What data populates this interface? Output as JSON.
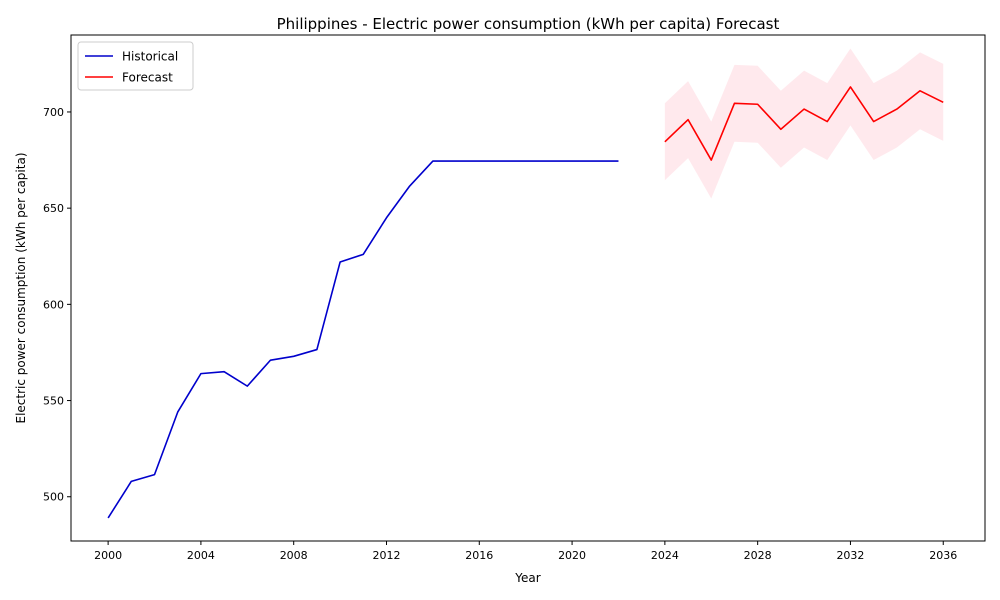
{
  "chart_data": {
    "type": "line",
    "title": "Philippines - Electric power consumption (kWh per capita) Forecast",
    "xlabel": "Year",
    "ylabel": "Electric power consumption (kWh per capita)",
    "xlim": [
      1998.4,
      2037.8
    ],
    "ylim": [
      477,
      740
    ],
    "x_ticks": [
      2000,
      2004,
      2008,
      2012,
      2016,
      2020,
      2024,
      2028,
      2032,
      2036
    ],
    "y_ticks": [
      500,
      550,
      600,
      650,
      700
    ],
    "grid": false,
    "legend_position": "top-left",
    "series": [
      {
        "name": "Historical",
        "color": "#0000cc",
        "x": [
          2000,
          2001,
          2002,
          2003,
          2004,
          2005,
          2006,
          2007,
          2008,
          2009,
          2010,
          2011,
          2012,
          2013,
          2014,
          2015,
          2016,
          2017,
          2018,
          2019,
          2020,
          2021,
          2022
        ],
        "y": [
          489,
          508,
          511.5,
          544,
          564,
          565,
          557.5,
          571,
          573,
          576.5,
          622,
          626,
          645,
          661.5,
          674.5,
          674.5,
          674.5,
          674.5,
          674.5,
          674.5,
          674.5,
          674.5,
          674.5
        ]
      },
      {
        "name": "Forecast",
        "color": "#ff0000",
        "x": [
          2024,
          2025,
          2026,
          2027,
          2028,
          2029,
          2030,
          2031,
          2032,
          2033,
          2034,
          2035,
          2036
        ],
        "y": [
          684.5,
          696,
          675,
          704.5,
          704,
          691,
          701.5,
          695,
          713,
          695,
          701.5,
          711,
          705
        ],
        "band_lower": [
          664.5,
          676,
          655,
          684.5,
          684,
          671,
          681.5,
          675,
          693,
          675,
          681.5,
          691,
          685
        ],
        "band_upper": [
          704.5,
          716,
          695,
          724.5,
          724,
          711,
          721.5,
          715,
          733,
          715,
          721.5,
          731,
          725
        ],
        "band_color": "#ffc0cb"
      }
    ]
  }
}
